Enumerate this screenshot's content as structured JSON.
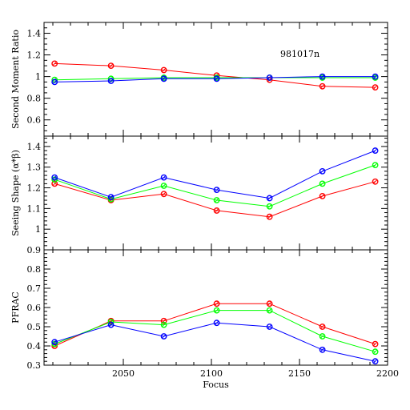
{
  "chart_data": [
    {
      "type": "line",
      "ylabel": "Second Moment Ratio",
      "annotation": "981017n",
      "ylim": [
        0.45,
        1.5
      ],
      "yticks_major": [
        0.6,
        0.8,
        1,
        1.2,
        1.4
      ],
      "yticklabels": [
        "0.6",
        "0.8",
        "1",
        "1.2",
        "1.4"
      ],
      "yticks_minor_step": 0.05,
      "x": [
        2011,
        2043,
        2073,
        2103,
        2133,
        2163,
        2193
      ],
      "series": [
        {
          "color": "#ff0000",
          "values": [
            1.12,
            1.1,
            1.06,
            1.01,
            0.97,
            0.91,
            0.9
          ]
        },
        {
          "color": "#00ff00",
          "values": [
            0.97,
            0.98,
            0.99,
            0.99,
            0.99,
            0.99,
            0.99
          ]
        },
        {
          "color": "#0000ff",
          "values": [
            0.95,
            0.96,
            0.98,
            0.98,
            0.99,
            1.0,
            1.0
          ]
        }
      ]
    },
    {
      "type": "line",
      "ylabel": "Seeing Shape (α*β)",
      "ylim": [
        0.9,
        1.45
      ],
      "yticks_major": [
        1,
        1.1,
        1.2,
        1.3,
        1.4
      ],
      "yticklabels": [
        "1",
        "1.1",
        "1.2",
        "1.3",
        "1.4"
      ],
      "yticks_minor_step": 0.02,
      "x": [
        2011,
        2043,
        2073,
        2103,
        2133,
        2163,
        2193
      ],
      "series": [
        {
          "color": "#ff0000",
          "values": [
            1.22,
            1.14,
            1.17,
            1.09,
            1.06,
            1.16,
            1.23
          ]
        },
        {
          "color": "#00ff00",
          "values": [
            1.24,
            1.145,
            1.21,
            1.14,
            1.11,
            1.22,
            1.31
          ]
        },
        {
          "color": "#0000ff",
          "values": [
            1.25,
            1.155,
            1.25,
            1.19,
            1.15,
            1.28,
            1.38
          ]
        }
      ]
    },
    {
      "type": "line",
      "ylabel": "PFRAC",
      "ylim": [
        0.3,
        0.9
      ],
      "yticks_major": [
        0.3,
        0.4,
        0.5,
        0.6,
        0.7,
        0.8,
        0.9
      ],
      "yticklabels": [
        "0.3",
        "0.4",
        "0.5",
        "0.6",
        "0.7",
        "0.8",
        "0.9"
      ],
      "yticks_minor_step": 0.02,
      "x": [
        2011,
        2043,
        2073,
        2103,
        2133,
        2163,
        2193
      ],
      "series": [
        {
          "color": "#ff0000",
          "values": [
            0.4,
            0.53,
            0.53,
            0.62,
            0.62,
            0.5,
            0.41
          ]
        },
        {
          "color": "#00ff00",
          "values": [
            0.41,
            0.525,
            0.51,
            0.585,
            0.585,
            0.45,
            0.37
          ]
        },
        {
          "color": "#0000ff",
          "values": [
            0.42,
            0.51,
            0.45,
            0.52,
            0.5,
            0.38,
            0.32
          ]
        }
      ]
    }
  ],
  "xaxis": {
    "xlabel": "Focus",
    "xlim": [
      2005,
      2200
    ],
    "xticks_major": [
      2050,
      2100,
      2150,
      2200
    ],
    "xticklabels": [
      "2050",
      "2100",
      "2150",
      "2200"
    ],
    "xticks_minor_step": 10
  }
}
